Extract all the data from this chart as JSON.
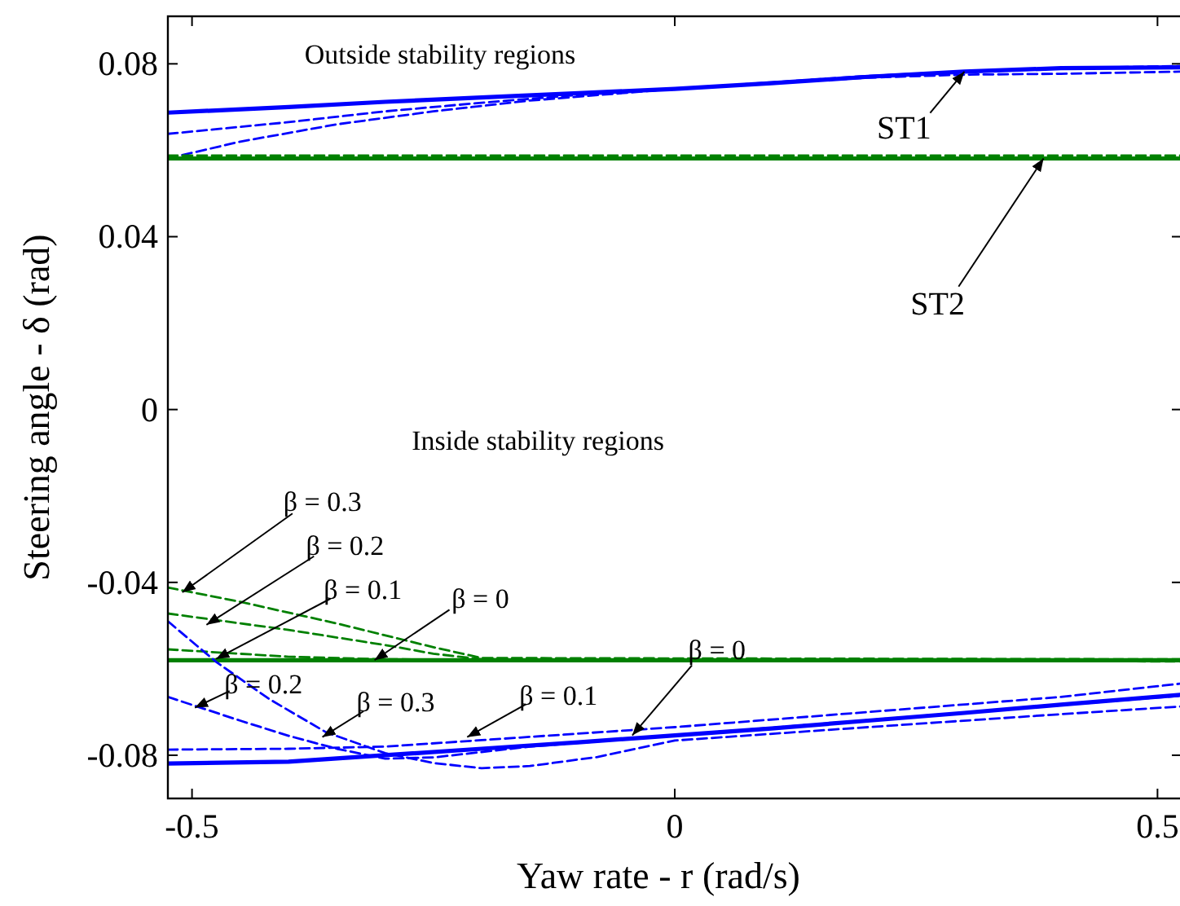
{
  "chart_data": {
    "type": "line",
    "xlabel": "Yaw rate - r (rad/s)",
    "ylabel": "Steering angle - δ (rad)",
    "xlim": [
      -0.525,
      0.525
    ],
    "ylim": [
      -0.09,
      0.091
    ],
    "xticks": [
      -0.5,
      0,
      0.5
    ],
    "yticks": [
      -0.08,
      -0.04,
      0,
      0.04,
      0.08
    ],
    "grid": false,
    "marker": "none",
    "series": [
      {
        "color": "#0000ff",
        "line_style": "solid",
        "x": [
          -0.525,
          -0.4,
          -0.3,
          -0.2,
          -0.1,
          0,
          0.1,
          0.2,
          0.3,
          0.4,
          0.525
        ],
        "values": [
          0.0687,
          0.07,
          0.0712,
          0.0722,
          0.0732,
          0.0742,
          0.0755,
          0.077,
          0.0782,
          0.079,
          0.0792
        ]
      },
      {
        "color": "#0000ff",
        "line_style": "dashed",
        "x": [
          -0.525,
          -0.4,
          -0.3,
          -0.2,
          -0.1,
          0,
          0.1,
          0.2,
          0.3,
          0.4,
          0.525
        ],
        "values": [
          0.0638,
          0.0665,
          0.069,
          0.071,
          0.0728,
          0.0742,
          0.0757,
          0.0772,
          0.0782,
          0.079,
          0.0795
        ]
      },
      {
        "color": "#0000ff",
        "line_style": "dashed",
        "x": [
          -0.525,
          -0.45,
          -0.35,
          -0.25,
          -0.15,
          0,
          0.2,
          0.3,
          0.4,
          0.525
        ],
        "values": [
          0.0581,
          0.062,
          0.066,
          0.069,
          0.0715,
          0.0742,
          0.0768,
          0.0775,
          0.0777,
          0.0782
        ]
      },
      {
        "color": "#008000",
        "line_style": "solid",
        "x": [
          -0.525,
          0.525
        ],
        "values": [
          0.0581,
          0.0581
        ]
      },
      {
        "color": "#008000",
        "line_style": "dashed",
        "x": [
          -0.525,
          0.525
        ],
        "values": [
          0.0588,
          0.0588
        ]
      },
      {
        "color": "#008000",
        "line_style": "solid",
        "x": [
          -0.525,
          0.525
        ],
        "values": [
          -0.058,
          -0.058
        ]
      },
      {
        "color": "#008000",
        "line_style": "dashed",
        "x": [
          -0.525,
          -0.45,
          -0.35,
          -0.25,
          -0.2,
          0.525
        ],
        "values": [
          -0.0412,
          -0.0445,
          -0.0495,
          -0.055,
          -0.0575,
          -0.0578
        ]
      },
      {
        "color": "#008000",
        "line_style": "dashed",
        "x": [
          -0.525,
          -0.4,
          -0.3,
          -0.25,
          -0.2,
          0.525
        ],
        "values": [
          -0.0472,
          -0.051,
          -0.0545,
          -0.0565,
          -0.0578,
          -0.0582
        ]
      },
      {
        "color": "#008000",
        "line_style": "dashed",
        "x": [
          -0.525,
          -0.4,
          -0.3,
          0.525
        ],
        "values": [
          -0.0555,
          -0.0572,
          -0.0578,
          -0.0583
        ]
      },
      {
        "color": "#0000ff",
        "line_style": "solid",
        "x": [
          -0.525,
          -0.4,
          -0.3,
          -0.2,
          -0.1,
          0,
          0.1,
          0.2,
          0.3,
          0.4,
          0.525
        ],
        "values": [
          -0.0819,
          -0.0815,
          -0.08,
          -0.0785,
          -0.077,
          -0.0754,
          -0.0738,
          -0.072,
          -0.0702,
          -0.0683,
          -0.066
        ]
      },
      {
        "color": "#0000ff",
        "line_style": "dashed",
        "x": [
          -0.525,
          -0.4,
          -0.3,
          -0.2,
          -0.1,
          0,
          0.2,
          0.4,
          0.525
        ],
        "values": [
          -0.0787,
          -0.0785,
          -0.078,
          -0.0765,
          -0.075,
          -0.0735,
          -0.07,
          -0.0665,
          -0.0634
        ]
      },
      {
        "color": "#0000ff",
        "line_style": "dashed",
        "x": [
          -0.525,
          -0.45,
          -0.4,
          -0.35,
          -0.3,
          -0.25,
          -0.15,
          0,
          0.525
        ],
        "values": [
          -0.0665,
          -0.072,
          -0.0755,
          -0.0785,
          -0.0808,
          -0.0805,
          -0.078,
          -0.0754,
          -0.0662
        ]
      },
      {
        "color": "#0000ff",
        "line_style": "dashed",
        "x": [
          -0.525,
          -0.475,
          -0.42,
          -0.361,
          -0.3,
          -0.25,
          -0.2,
          -0.15,
          -0.08,
          0,
          0.2,
          0.4,
          0.525
        ],
        "values": [
          -0.049,
          -0.0584,
          -0.067,
          -0.0747,
          -0.0795,
          -0.0818,
          -0.083,
          -0.0825,
          -0.0804,
          -0.0766,
          -0.0735,
          -0.0705,
          -0.0687
        ]
      }
    ],
    "annotations": [
      "Outside stability regions",
      "Inside stability regions",
      {
        "text": "ST1",
        "x": 0.3,
        "y": 0.0782
      },
      {
        "text": "ST2",
        "x": 0.382,
        "y": 0.0581
      },
      {
        "text": "β = 0.3",
        "x": -0.51,
        "y": -0.0423
      },
      {
        "text": "β = 0.2",
        "x": -0.485,
        "y": -0.0498
      },
      {
        "text": "β = 0.1",
        "x": -0.475,
        "y": -0.0577
      },
      {
        "text": "β = 0",
        "x": -0.311,
        "y": -0.058
      },
      {
        "text": "β = 0.2",
        "x": -0.497,
        "y": -0.069
      },
      {
        "text": "β = 0.3",
        "x": -0.365,
        "y": -0.0758
      },
      {
        "text": "β = 0.1",
        "x": -0.215,
        "y": -0.0758
      },
      {
        "text": "β = 0",
        "x": -0.044,
        "y": -0.0754
      }
    ]
  }
}
